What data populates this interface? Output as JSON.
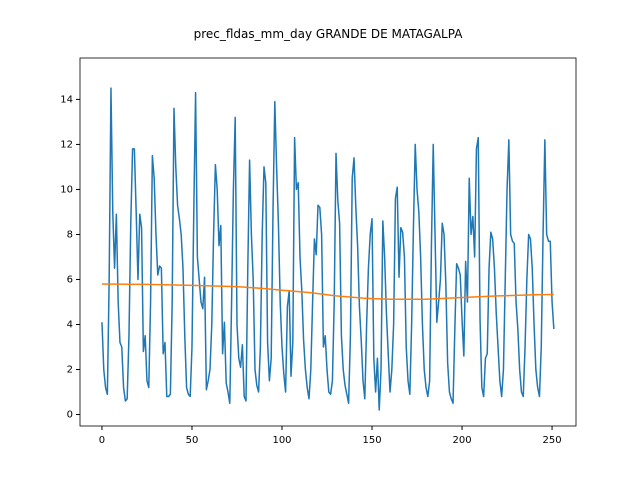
{
  "chart_data": {
    "type": "line",
    "title": "prec_fldas_mm_day GRANDE DE MATAGALPA",
    "xlim": [
      -12.2,
      263.3
    ],
    "ylim": [
      -0.51,
      15.84
    ],
    "xticks": [
      0,
      50,
      100,
      150,
      200,
      250
    ],
    "yticks": [
      0,
      2,
      4,
      6,
      8,
      10,
      12,
      14
    ],
    "series": [
      {
        "color": "#1f77b4",
        "x": [
          0,
          1,
          2,
          3,
          4,
          5,
          6,
          7,
          8,
          9,
          10,
          11,
          12,
          13,
          14,
          15,
          16,
          17,
          18,
          19,
          20,
          21,
          22,
          23,
          24,
          25,
          26,
          27,
          28,
          29,
          30,
          31,
          32,
          33,
          34,
          35,
          36,
          37,
          38,
          39,
          40,
          41,
          42,
          43,
          44,
          45,
          46,
          47,
          48,
          49,
          50,
          51,
          52,
          53,
          54,
          55,
          56,
          57,
          58,
          59,
          60,
          61,
          62,
          63,
          64,
          65,
          66,
          67,
          68,
          69,
          70,
          71,
          72,
          73,
          74,
          75,
          76,
          77,
          78,
          79,
          80,
          81,
          82,
          83,
          84,
          85,
          86,
          87,
          88,
          89,
          90,
          91,
          92,
          93,
          94,
          95,
          96,
          97,
          98,
          99,
          100,
          101,
          102,
          103,
          104,
          105,
          106,
          107,
          108,
          109,
          110,
          111,
          112,
          113,
          114,
          115,
          116,
          117,
          118,
          119,
          120,
          121,
          122,
          123,
          124,
          125,
          126,
          127,
          128,
          129,
          130,
          131,
          132,
          133,
          134,
          135,
          136,
          137,
          138,
          139,
          140,
          141,
          142,
          143,
          144,
          145,
          146,
          147,
          148,
          149,
          150,
          151,
          152,
          153,
          154,
          155,
          156,
          157,
          158,
          159,
          160,
          161,
          162,
          163,
          164,
          165,
          166,
          167,
          168,
          169,
          170,
          171,
          172,
          173,
          174,
          175,
          176,
          177,
          178,
          179,
          180,
          181,
          182,
          183,
          184,
          185,
          186,
          187,
          188,
          189,
          190,
          191,
          192,
          193,
          194,
          195,
          196,
          197,
          198,
          199,
          200,
          201,
          202,
          203,
          204,
          205,
          206,
          207,
          208,
          209,
          210,
          211,
          212,
          213,
          214,
          215,
          216,
          217,
          218,
          219,
          220,
          221,
          222,
          223,
          224,
          225,
          226,
          227,
          228,
          229,
          230,
          231,
          232,
          233,
          234,
          235,
          236,
          237,
          238,
          239,
          240,
          241,
          242,
          243,
          244,
          245,
          246,
          247,
          248,
          249,
          250,
          251
        ],
        "values": [
          4.1,
          2.0,
          1.2,
          0.9,
          6.0,
          14.5,
          9.0,
          6.5,
          8.9,
          5.0,
          3.2,
          3.0,
          1.2,
          0.6,
          0.7,
          3.5,
          8.5,
          11.8,
          11.8,
          9.0,
          6.0,
          8.9,
          8.3,
          2.8,
          3.5,
          1.5,
          1.2,
          5.0,
          11.5,
          10.5,
          8.0,
          6.2,
          6.6,
          6.5,
          2.7,
          3.2,
          0.8,
          0.8,
          0.9,
          5.0,
          13.6,
          11.0,
          9.3,
          8.7,
          8.0,
          6.5,
          3.5,
          1.2,
          0.9,
          0.8,
          3.0,
          9.0,
          14.3,
          7.0,
          6.0,
          5.0,
          4.7,
          6.1,
          1.1,
          1.5,
          2.0,
          4.0,
          8.0,
          11.1,
          10.0,
          7.5,
          8.4,
          2.7,
          4.1,
          1.4,
          1.0,
          0.5,
          5.0,
          10.0,
          13.2,
          4.0,
          2.5,
          2.1,
          3.1,
          0.8,
          0.6,
          6.5,
          11.3,
          8.0,
          6.0,
          2.0,
          1.3,
          1.0,
          3.0,
          8.0,
          11.0,
          10.3,
          3.2,
          1.5,
          2.5,
          9.0,
          13.9,
          11.0,
          8.5,
          5.0,
          3.0,
          1.8,
          1.0,
          4.8,
          5.5,
          1.7,
          3.2,
          12.3,
          10.0,
          10.3,
          7.0,
          5.5,
          3.3,
          2.0,
          1.2,
          0.7,
          2.0,
          5.0,
          7.8,
          7.1,
          9.3,
          9.2,
          8.0,
          3.0,
          3.5,
          2.0,
          1.0,
          0.9,
          1.5,
          5.0,
          11.6,
          9.5,
          8.5,
          3.5,
          2.0,
          1.3,
          0.9,
          0.5,
          3.5,
          10.5,
          11.4,
          9.2,
          7.5,
          4.8,
          3.3,
          1.5,
          0.7,
          4.0,
          6.5,
          8.0,
          8.7,
          2.5,
          1.0,
          2.5,
          0.2,
          2.0,
          8.6,
          7.0,
          4.5,
          2.7,
          1.0,
          2.0,
          4.0,
          9.6,
          10.1,
          6.1,
          8.3,
          8.1,
          7.0,
          3.0,
          1.5,
          0.9,
          4.0,
          8.3,
          12.0,
          10.0,
          9.0,
          7.0,
          4.0,
          2.0,
          1.2,
          0.8,
          1.5,
          7.5,
          12.0,
          8.0,
          4.1,
          5.0,
          6.0,
          8.5,
          8.0,
          5.8,
          2.3,
          1.0,
          0.7,
          0.5,
          3.8,
          6.7,
          6.5,
          6.2,
          4.2,
          2.6,
          6.8,
          5.0,
          10.5,
          8.0,
          8.8,
          7.0,
          11.8,
          12.3,
          4.2,
          1.2,
          0.8,
          2.5,
          2.7,
          6.5,
          8.1,
          7.8,
          6.5,
          4.5,
          3.0,
          1.5,
          0.8,
          2.0,
          6.0,
          10.0,
          12.2,
          8.0,
          7.7,
          7.6,
          5.0,
          3.8,
          2.0,
          1.0,
          0.8,
          3.0,
          6.0,
          8.0,
          7.8,
          6.5,
          4.0,
          2.0,
          1.2,
          0.8,
          3.0,
          8.0,
          12.2,
          8.0,
          7.7,
          7.7,
          5.0,
          3.8
        ]
      },
      {
        "color": "#ff7f0e",
        "x": [
          0,
          25,
          50,
          75,
          90,
          100,
          115,
          130,
          145,
          160,
          180,
          200,
          220,
          240,
          251
        ],
        "values": [
          5.8,
          5.78,
          5.74,
          5.68,
          5.6,
          5.52,
          5.42,
          5.27,
          5.17,
          5.12,
          5.12,
          5.2,
          5.27,
          5.32,
          5.33
        ]
      }
    ]
  }
}
